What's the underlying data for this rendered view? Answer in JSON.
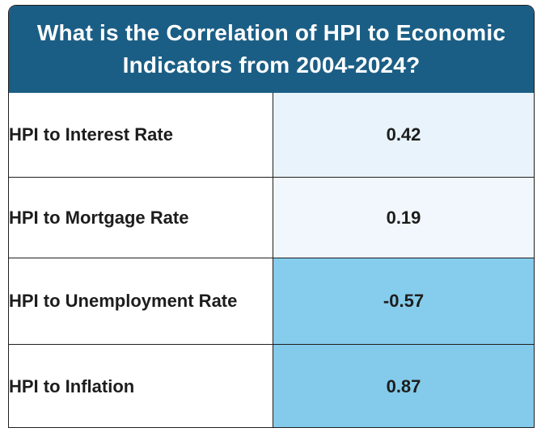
{
  "chart_data": {
    "type": "table",
    "title": "What is the Correlation of HPI to Economic Indicators from 2004-2024?",
    "rows": [
      {
        "label": "HPI to Interest Rate",
        "value": "0.42",
        "color": "#e8f3fb"
      },
      {
        "label": "HPI to Mortgage Rate",
        "value": "0.19",
        "color": "#f1f7fc"
      },
      {
        "label": "HPI to Unemployment Rate",
        "value": "-0.57",
        "color": "#86ccec"
      },
      {
        "label": "HPI to Inflation",
        "value": "0.87",
        "color": "#84caeb"
      }
    ]
  },
  "colors": {
    "header_bg": "#1b5e85",
    "header_text": "#ffffff",
    "border": "#1f1f1f"
  }
}
